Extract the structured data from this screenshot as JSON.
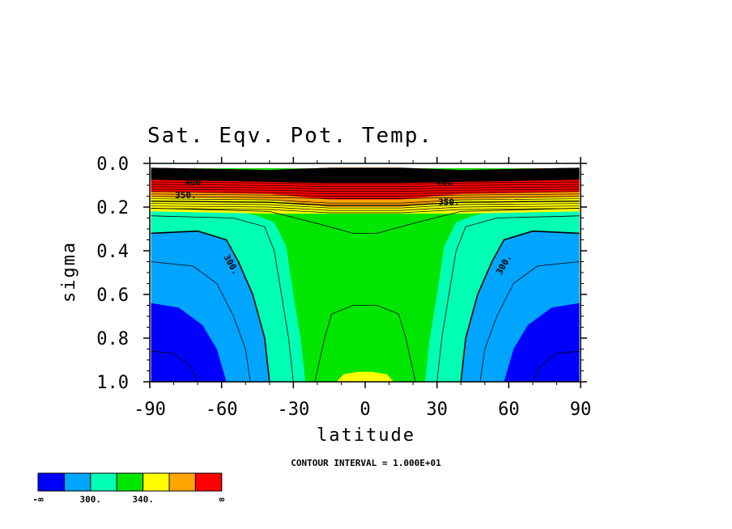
{
  "chart_data": {
    "type": "contour",
    "title": "Sat. Eqv. Pot. Temp.",
    "xlabel": "latitude",
    "ylabel": "sigma",
    "xlim": [
      -90,
      90
    ],
    "ylim": [
      1.0,
      0.0
    ],
    "x_ticks": [
      "-90",
      "-60",
      "-30",
      "0",
      "30",
      "60",
      "90"
    ],
    "y_ticks": [
      "0.0",
      "0.2",
      "0.4",
      "0.6",
      "0.8",
      "1.0"
    ],
    "contour_interval_text": "CONTOUR INTERVAL = 1.000E+01",
    "contour_labels": [
      {
        "text": "350.",
        "lat": -75,
        "sigma": 0.16
      },
      {
        "text": "350.",
        "lat": 35,
        "sigma": 0.19
      },
      {
        "text": "300.",
        "lat": -57,
        "sigma": 0.47
      },
      {
        "text": "300.",
        "lat": 59,
        "sigma": 0.47
      },
      {
        "text": "400",
        "lat": -72,
        "sigma": 0.1
      },
      {
        "text": "400",
        "lat": 33,
        "sigma": 0.1
      }
    ],
    "colorbar": {
      "colors": [
        "#0000ff",
        "#00a5ff",
        "#00ffb4",
        "#00e600",
        "#ffff00",
        "#ffa500",
        "#ff0000"
      ],
      "labels": [
        "-∞",
        "300.",
        "340.",
        "∞"
      ]
    }
  }
}
